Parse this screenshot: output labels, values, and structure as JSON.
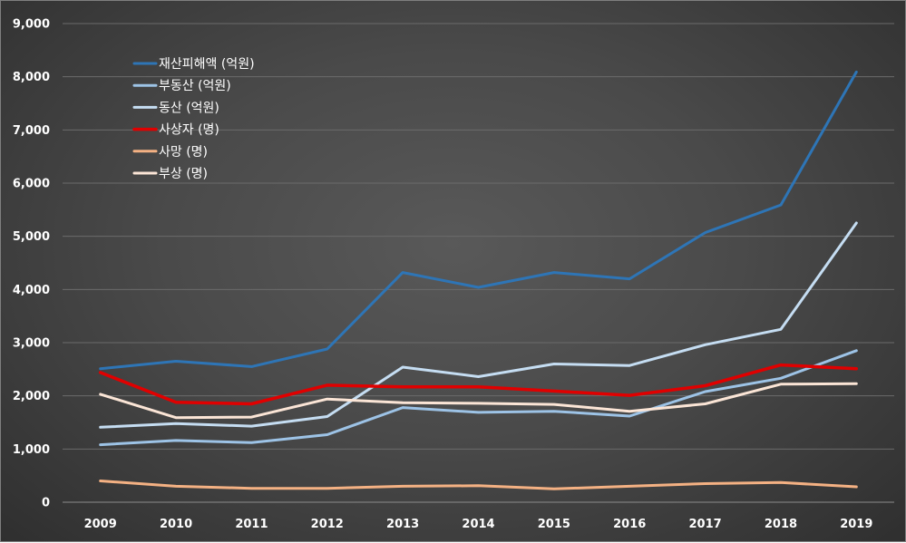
{
  "chart_data": {
    "type": "line",
    "categories": [
      "2009",
      "2010",
      "2011",
      "2012",
      "2013",
      "2014",
      "2015",
      "2016",
      "2017",
      "2018",
      "2019"
    ],
    "ylim": [
      0,
      9000
    ],
    "yticks": [
      0,
      1000,
      2000,
      3000,
      4000,
      5000,
      6000,
      7000,
      8000,
      9000
    ],
    "ytick_labels": [
      "0",
      "1,000",
      "2,000",
      "3,000",
      "4,000",
      "5,000",
      "6,000",
      "7,000",
      "8,000",
      "9,000"
    ],
    "grid": true,
    "legend_position": "top-left",
    "series": [
      {
        "name": "재산피해액 (억원)",
        "color": "#2e75b6",
        "width": 3,
        "values": [
          2510,
          2650,
          2550,
          2880,
          4320,
          4040,
          4320,
          4200,
          5070,
          5590,
          8090
        ]
      },
      {
        "name": "부동산 (억원)",
        "color": "#9dc3e6",
        "width": 3,
        "values": [
          1080,
          1160,
          1120,
          1270,
          1780,
          1690,
          1710,
          1620,
          2080,
          2330,
          2850
        ]
      },
      {
        "name": "동산 (억원)",
        "color": "#c5ddf2",
        "width": 3,
        "values": [
          1410,
          1480,
          1430,
          1610,
          2540,
          2360,
          2600,
          2570,
          2960,
          3250,
          5250
        ]
      },
      {
        "name": "사상자 (명)",
        "color": "#e00000",
        "width": 3.5,
        "values": [
          2440,
          1880,
          1850,
          2200,
          2170,
          2170,
          2090,
          2010,
          2190,
          2580,
          2510
        ]
      },
      {
        "name": "사망 (명)",
        "color": "#f4b183",
        "width": 3,
        "values": [
          400,
          300,
          260,
          260,
          300,
          310,
          250,
          300,
          350,
          370,
          290
        ]
      },
      {
        "name": "부상 (명)",
        "color": "#fbe5d6",
        "width": 3,
        "values": [
          2030,
          1590,
          1600,
          1940,
          1870,
          1860,
          1840,
          1710,
          1850,
          2220,
          2230
        ]
      }
    ]
  }
}
